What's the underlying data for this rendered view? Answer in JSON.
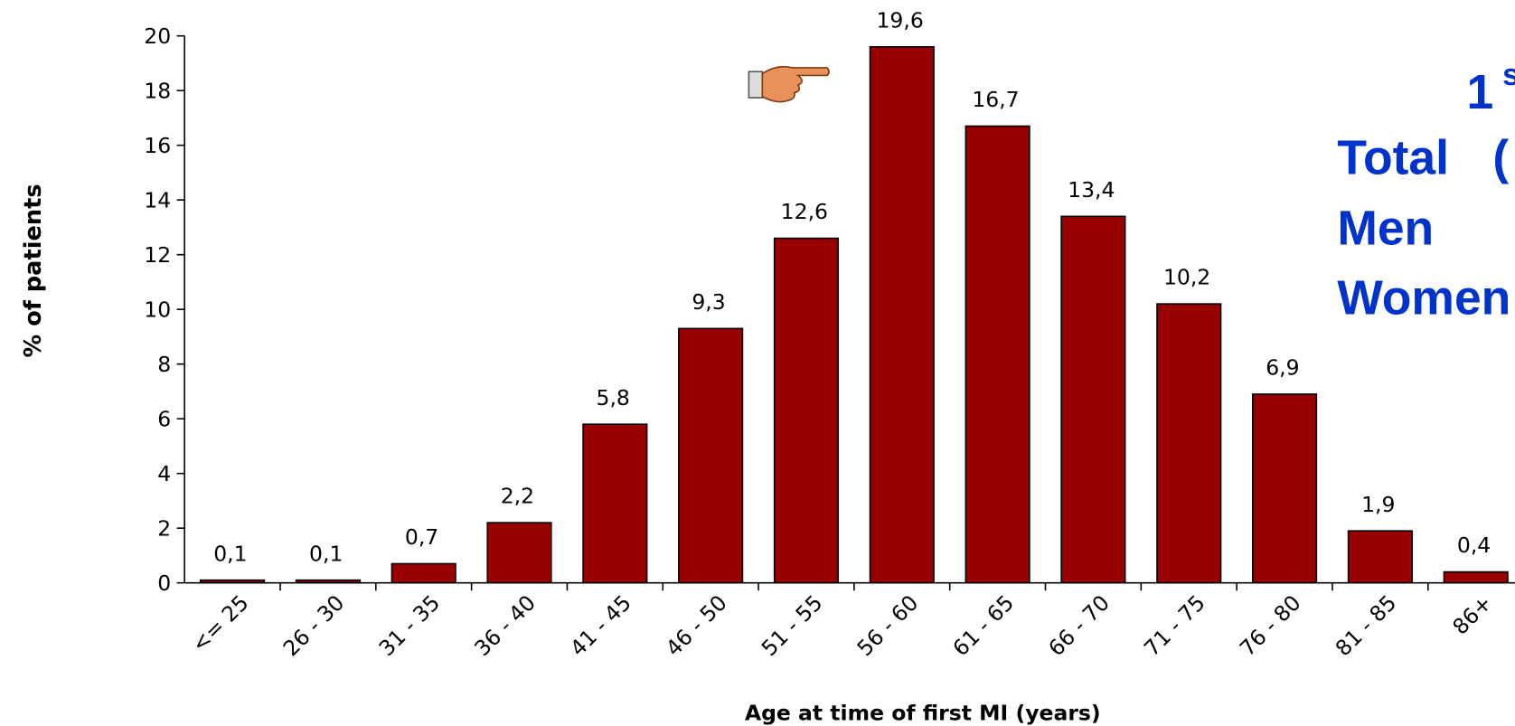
{
  "chart_data": {
    "type": "bar",
    "x_label": "Age at time of first MI (years)",
    "y_label": "% of patients",
    "categories": [
      "<= 25",
      "26 - 30",
      "31 - 35",
      "36 - 40",
      "41 - 45",
      "46 - 50",
      "51 - 55",
      "56 - 60",
      "61 - 65",
      "66 - 70",
      "71 - 75",
      "76 - 80",
      "81 - 85",
      "86+"
    ],
    "values": [
      0.1,
      0.1,
      0.7,
      2.2,
      5.8,
      9.3,
      12.6,
      19.6,
      16.7,
      13.4,
      10.2,
      6.9,
      1.9,
      0.4
    ],
    "value_labels": [
      "0,1",
      "0,1",
      "0,7",
      "2,2",
      "5,8",
      "9,3",
      "12,6",
      "19,6",
      "16,7",
      "13,4",
      "10,2",
      "6,9",
      "1,9",
      "0,4"
    ],
    "color": "#990000",
    "ylim": [
      0,
      20
    ],
    "yticks": [
      0,
      2,
      4,
      6,
      8,
      10,
      12,
      14,
      16,
      18,
      20
    ],
    "annotations": [
      "1",
      "s",
      "Total",
      "(",
      "Men",
      "Women"
    ],
    "annotation_color": "#0033cc"
  }
}
